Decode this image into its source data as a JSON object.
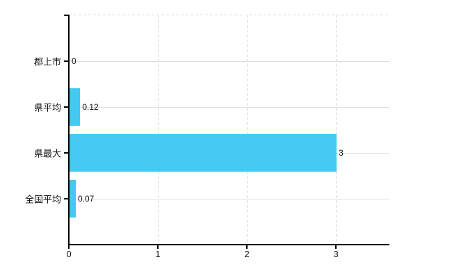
{
  "chart_data": {
    "type": "bar",
    "orientation": "horizontal",
    "title": "",
    "categories": [
      "郡上市",
      "県平均",
      "県最大",
      "全国平均"
    ],
    "values": [
      0,
      0.12,
      3,
      0.07
    ],
    "value_labels": [
      "0",
      "0.12",
      "3",
      "0.07"
    ],
    "xlim": [
      0,
      3.6
    ],
    "x_ticks": [
      0,
      1,
      2,
      3
    ],
    "x_tick_labels": [
      "0",
      "1",
      "2",
      "3"
    ],
    "xlabel": "",
    "ylabel": "",
    "grid": true,
    "legend": "none"
  },
  "colors": {
    "bar": "#45c8f2",
    "axis": "#000000",
    "horizontal_grid": "#d9e2d9",
    "vertical_grid": "#ddd6dd",
    "top_border": "#d9d9d9",
    "text": "#111111",
    "background": "#ffffff"
  }
}
